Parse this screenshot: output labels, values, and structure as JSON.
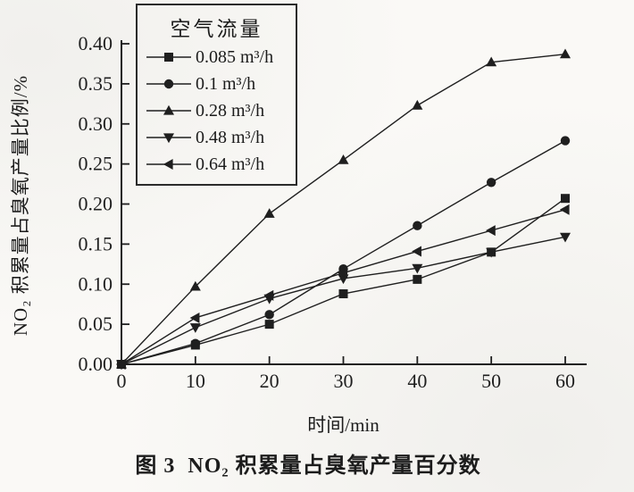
{
  "figure": {
    "caption": "图 3  NO₂ 积累量占臭氧产量百分数",
    "ink": "#1f1f1f",
    "background": "#faf9f6"
  },
  "chart_data": {
    "type": "line",
    "title": "",
    "xlabel": "时间/min",
    "ylabel": "NO₂ 积累量占臭氧产量比例/%",
    "legend_title": "空气流量",
    "legend_position": "top-left-inside",
    "grid": false,
    "xlim": [
      0,
      60
    ],
    "ylim": [
      0,
      0.4
    ],
    "xticks": [
      "0",
      "10",
      "20",
      "30",
      "40",
      "50",
      "60"
    ],
    "yticks": [
      "0.00",
      "0.05",
      "0.10",
      "0.15",
      "0.20",
      "0.25",
      "0.30",
      "0.35",
      "0.40"
    ],
    "x": [
      0,
      10,
      20,
      30,
      40,
      50,
      60
    ],
    "series": [
      {
        "name": "0.085 m³/h",
        "marker": "square",
        "values": [
          0,
          0.024,
          0.05,
          0.088,
          0.106,
          0.14,
          0.207
        ]
      },
      {
        "name": "0.1 m³/h",
        "marker": "circle",
        "values": [
          0,
          0.026,
          0.062,
          0.119,
          0.173,
          0.227,
          0.279
        ]
      },
      {
        "name": "0.28 m³/h",
        "marker": "triangle-up",
        "values": [
          0,
          0.097,
          0.188,
          0.255,
          0.323,
          0.377,
          0.387
        ]
      },
      {
        "name": "0.48 m³/h",
        "marker": "triangle-down",
        "values": [
          0,
          0.046,
          0.082,
          0.107,
          0.12,
          0.14,
          0.159
        ]
      },
      {
        "name": "0.64 m³/h",
        "marker": "triangle-left",
        "values": [
          0,
          0.058,
          0.086,
          0.114,
          0.141,
          0.167,
          0.193
        ]
      }
    ]
  }
}
